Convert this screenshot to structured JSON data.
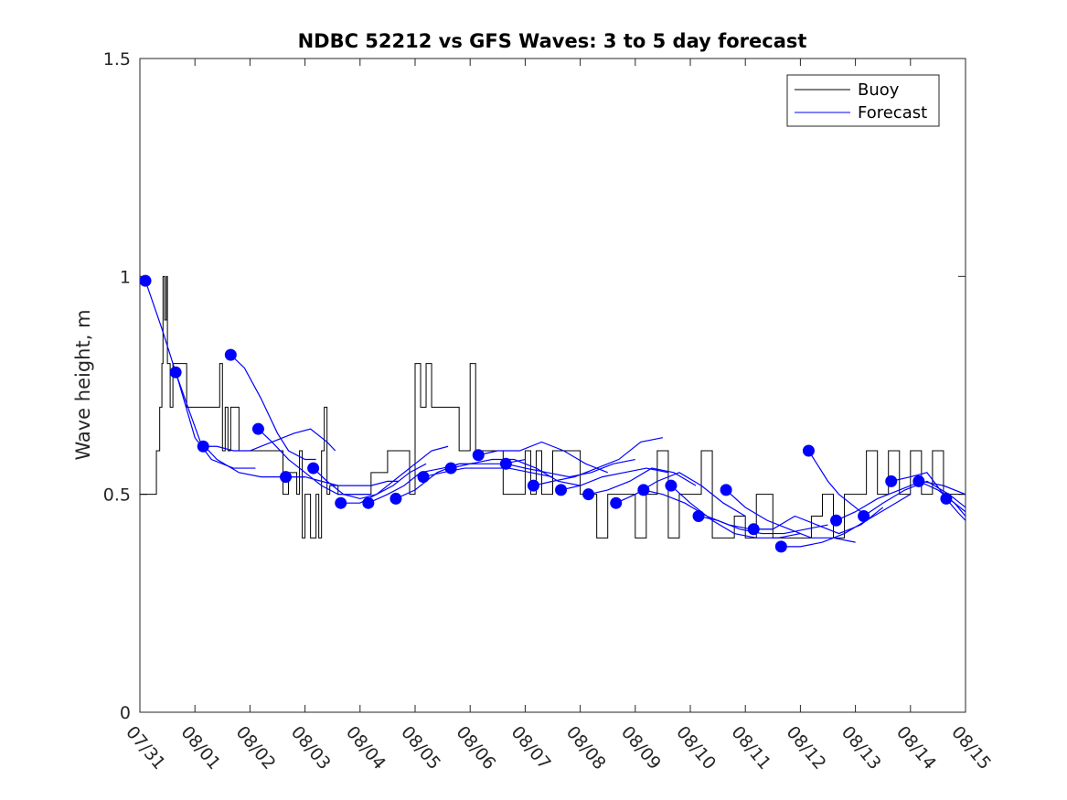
{
  "chart_data": {
    "type": "line",
    "title": "NDBC 52212 vs GFS Waves: 3 to 5 day forecast",
    "xlabel": "",
    "ylabel": "Wave height, m",
    "xlim": [
      0,
      15
    ],
    "ylim": [
      0,
      1.5
    ],
    "x_ticks": [
      0,
      1,
      2,
      3,
      4,
      5,
      6,
      7,
      8,
      9,
      10,
      11,
      12,
      13,
      14,
      15
    ],
    "x_tick_labels": [
      "07/31",
      "08/01",
      "08/02",
      "08/03",
      "08/04",
      "08/05",
      "08/06",
      "08/07",
      "08/08",
      "08/09",
      "08/10",
      "08/11",
      "08/12",
      "08/13",
      "08/14",
      "08/15"
    ],
    "y_ticks": [
      0,
      0.5,
      1,
      1.5
    ],
    "y_tick_labels": [
      "0",
      "0.5",
      "1",
      "1.5"
    ],
    "legend": {
      "position": "top-right",
      "entries": [
        "Buoy",
        "Forecast"
      ]
    },
    "colors": {
      "buoy": "#000000",
      "forecast": "#0000ff"
    },
    "series": [
      {
        "name": "Buoy",
        "x": [
          0,
          0.25,
          0.3,
          0.36,
          0.4,
          0.42,
          0.45,
          0.48,
          0.5,
          0.55,
          0.6,
          0.7,
          0.85,
          0.95,
          1.0,
          1.3,
          1.45,
          1.5,
          1.55,
          1.6,
          1.65,
          1.8,
          2.2,
          2.5,
          2.6,
          2.7,
          2.85,
          2.9,
          2.95,
          3.0,
          3.1,
          3.2,
          3.25,
          3.3,
          3.35,
          3.4,
          3.45,
          3.6,
          4.0,
          4.2,
          4.5,
          4.8,
          4.9,
          5.0,
          5.1,
          5.2,
          5.3,
          5.6,
          5.8,
          6.0,
          6.1,
          6.2,
          6.4,
          6.5,
          6.6,
          6.8,
          7.0,
          7.1,
          7.2,
          7.3,
          7.5,
          8.0,
          8.3,
          8.5,
          8.8,
          9.0,
          9.2,
          9.4,
          9.6,
          9.8,
          10.0,
          10.2,
          10.4,
          10.6,
          10.8,
          11.0,
          11.2,
          11.5,
          11.8,
          12.0,
          12.2,
          12.4,
          12.6,
          12.8,
          13.0,
          13.2,
          13.4,
          13.6,
          13.8,
          14.0,
          14.2,
          14.4,
          14.6,
          14.8,
          15.0
        ],
        "y": [
          0.5,
          0.5,
          0.6,
          0.7,
          0.8,
          1.0,
          0.9,
          1.0,
          0.8,
          0.7,
          0.8,
          0.8,
          0.7,
          0.7,
          0.7,
          0.7,
          0.8,
          0.6,
          0.7,
          0.6,
          0.7,
          0.6,
          0.6,
          0.6,
          0.5,
          0.55,
          0.5,
          0.6,
          0.4,
          0.5,
          0.4,
          0.5,
          0.4,
          0.6,
          0.7,
          0.5,
          0.52,
          0.5,
          0.5,
          0.55,
          0.6,
          0.6,
          0.5,
          0.8,
          0.7,
          0.8,
          0.7,
          0.7,
          0.6,
          0.8,
          0.6,
          0.6,
          0.6,
          0.6,
          0.5,
          0.5,
          0.6,
          0.5,
          0.6,
          0.5,
          0.6,
          0.5,
          0.4,
          0.5,
          0.5,
          0.4,
          0.5,
          0.6,
          0.4,
          0.5,
          0.5,
          0.6,
          0.4,
          0.4,
          0.45,
          0.4,
          0.5,
          0.4,
          0.4,
          0.4,
          0.45,
          0.5,
          0.4,
          0.5,
          0.5,
          0.6,
          0.5,
          0.6,
          0.5,
          0.6,
          0.5,
          0.6,
          0.5,
          0.5,
          0.5
        ]
      },
      {
        "name": "Forecast",
        "segments": [
          {
            "x": [
              0.1,
              0.4,
              0.7,
              1.0,
              1.3,
              1.7,
              2.1
            ],
            "y": [
              0.99,
              0.88,
              0.76,
              0.63,
              0.58,
              0.56,
              0.56
            ]
          },
          {
            "x": [
              0.65,
              0.9,
              1.1,
              1.4,
              1.8,
              2.2,
              2.6,
              3.0
            ],
            "y": [
              0.78,
              0.69,
              0.62,
              0.58,
              0.55,
              0.54,
              0.54,
              0.54
            ]
          },
          {
            "x": [
              1.15,
              1.4,
              1.7,
              2.0,
              2.4,
              2.8,
              3.1,
              3.4,
              3.55
            ],
            "y": [
              0.61,
              0.61,
              0.6,
              0.6,
              0.62,
              0.64,
              0.65,
              0.62,
              0.6
            ]
          },
          {
            "x": [
              1.65,
              1.9,
              2.2,
              2.5,
              2.7,
              3.0,
              3.2
            ],
            "y": [
              0.82,
              0.79,
              0.72,
              0.64,
              0.6,
              0.58,
              0.58
            ]
          },
          {
            "x": [
              2.15,
              2.4,
              2.7,
              3.0,
              3.3,
              3.6,
              4.0,
              4.2
            ],
            "y": [
              0.65,
              0.62,
              0.58,
              0.55,
              0.52,
              0.5,
              0.5,
              0.5
            ]
          },
          {
            "x": [
              2.65,
              3.0,
              3.3,
              3.6,
              3.9,
              4.2,
              4.5,
              4.7
            ],
            "y": [
              0.54,
              0.54,
              0.53,
              0.52,
              0.52,
              0.52,
              0.53,
              0.53
            ]
          },
          {
            "x": [
              3.15,
              3.4,
              3.7,
              4.0,
              4.3,
              4.6,
              4.9,
              5.2
            ],
            "y": [
              0.56,
              0.53,
              0.5,
              0.49,
              0.5,
              0.52,
              0.55,
              0.57
            ]
          },
          {
            "x": [
              3.65,
              4.0,
              4.3,
              4.6,
              5.0,
              5.3,
              5.6
            ],
            "y": [
              0.48,
              0.48,
              0.5,
              0.53,
              0.57,
              0.6,
              0.61
            ]
          },
          {
            "x": [
              4.15,
              4.5,
              4.8,
              5.1,
              5.5,
              5.8,
              6.1
            ],
            "y": [
              0.48,
              0.5,
              0.52,
              0.55,
              0.56,
              0.57,
              0.57
            ]
          },
          {
            "x": [
              4.65,
              5.0,
              5.4,
              5.8,
              6.2,
              6.6,
              7.0
            ],
            "y": [
              0.49,
              0.51,
              0.55,
              0.57,
              0.57,
              0.57,
              0.58
            ]
          },
          {
            "x": [
              5.15,
              5.5,
              5.9,
              6.3,
              6.7,
              7.1,
              7.5
            ],
            "y": [
              0.54,
              0.55,
              0.56,
              0.56,
              0.56,
              0.55,
              0.54
            ]
          },
          {
            "x": [
              5.65,
              6.0,
              6.4,
              6.8,
              7.2,
              7.6,
              8.0
            ],
            "y": [
              0.56,
              0.57,
              0.58,
              0.58,
              0.56,
              0.53,
              0.52
            ]
          },
          {
            "x": [
              6.15,
              6.5,
              6.9,
              7.3,
              7.7,
              8.1,
              8.5
            ],
            "y": [
              0.59,
              0.6,
              0.6,
              0.62,
              0.6,
              0.57,
              0.55
            ]
          },
          {
            "x": [
              6.65,
              7.0,
              7.4,
              7.8,
              8.2,
              8.6,
              9.0
            ],
            "y": [
              0.57,
              0.56,
              0.55,
              0.54,
              0.55,
              0.57,
              0.58
            ]
          },
          {
            "x": [
              7.15,
              7.5,
              7.9,
              8.3,
              8.7,
              9.1,
              9.5
            ],
            "y": [
              0.52,
              0.53,
              0.54,
              0.56,
              0.58,
              0.62,
              0.63
            ]
          },
          {
            "x": [
              7.65,
              8.0,
              8.4,
              8.8,
              9.2,
              9.6
            ],
            "y": [
              0.51,
              0.52,
              0.54,
              0.55,
              0.56,
              0.55
            ]
          },
          {
            "x": [
              8.15,
              8.5,
              8.9,
              9.3,
              9.7,
              10.1
            ],
            "y": [
              0.5,
              0.51,
              0.53,
              0.56,
              0.55,
              0.52
            ]
          },
          {
            "x": [
              8.65,
              9.0,
              9.4,
              9.8,
              10.2,
              10.6,
              11.0
            ],
            "y": [
              0.48,
              0.5,
              0.53,
              0.55,
              0.52,
              0.48,
              0.45
            ]
          },
          {
            "x": [
              9.15,
              9.5,
              9.9,
              10.3,
              10.7,
              11.1,
              11.5
            ],
            "y": [
              0.51,
              0.5,
              0.48,
              0.45,
              0.43,
              0.42,
              0.42
            ]
          },
          {
            "x": [
              9.65,
              10.0,
              10.4,
              10.8,
              11.2,
              11.6,
              12.0
            ],
            "y": [
              0.52,
              0.48,
              0.44,
              0.41,
              0.4,
              0.4,
              0.41
            ]
          },
          {
            "x": [
              10.15,
              10.5,
              10.9,
              11.3,
              11.7,
              12.1,
              12.5
            ],
            "y": [
              0.45,
              0.44,
              0.42,
              0.41,
              0.41,
              0.42,
              0.43
            ]
          },
          {
            "x": [
              10.65,
              11.0,
              11.4,
              11.8,
              12.2,
              12.6,
              13.0
            ],
            "y": [
              0.51,
              0.47,
              0.44,
              0.42,
              0.4,
              0.4,
              0.39
            ]
          },
          {
            "x": [
              11.15,
              11.5,
              11.9,
              12.3,
              12.7,
              13.1,
              13.5
            ],
            "y": [
              0.42,
              0.42,
              0.45,
              0.43,
              0.41,
              0.43,
              0.47
            ]
          },
          {
            "x": [
              11.65,
              12.0,
              12.4,
              12.8,
              13.2,
              13.6,
              14.0
            ],
            "y": [
              0.38,
              0.38,
              0.39,
              0.41,
              0.44,
              0.47,
              0.5
            ]
          },
          {
            "x": [
              12.15,
              12.3,
              12.5,
              12.7,
              12.9,
              13.1
            ],
            "y": [
              0.6,
              0.57,
              0.53,
              0.5,
              0.48,
              0.46
            ]
          },
          {
            "x": [
              12.65,
              13.0,
              13.4,
              13.8,
              14.2,
              14.6,
              15.0
            ],
            "y": [
              0.44,
              0.46,
              0.49,
              0.51,
              0.53,
              0.52,
              0.5
            ]
          },
          {
            "x": [
              13.15,
              13.5,
              13.9,
              14.3,
              14.7,
              15.0
            ],
            "y": [
              0.45,
              0.48,
              0.51,
              0.53,
              0.5,
              0.47
            ]
          },
          {
            "x": [
              13.65,
              14.0,
              14.3,
              14.6,
              15.0
            ],
            "y": [
              0.53,
              0.54,
              0.55,
              0.5,
              0.46
            ]
          },
          {
            "x": [
              14.15,
              14.5,
              14.8,
              15.0
            ],
            "y": [
              0.53,
              0.51,
              0.48,
              0.45
            ]
          },
          {
            "x": [
              14.65,
              14.85,
              15.0
            ],
            "y": [
              0.49,
              0.46,
              0.44
            ]
          }
        ],
        "markers": {
          "x": [
            0.1,
            0.65,
            1.15,
            1.65,
            2.15,
            2.65,
            3.15,
            3.65,
            4.15,
            4.65,
            5.15,
            5.65,
            6.15,
            6.65,
            7.15,
            7.65,
            8.15,
            8.65,
            9.15,
            9.65,
            10.15,
            10.65,
            11.15,
            11.65,
            12.15,
            12.65,
            13.15,
            13.65,
            14.15,
            14.65
          ],
          "y": [
            0.99,
            0.78,
            0.61,
            0.82,
            0.65,
            0.54,
            0.56,
            0.48,
            0.48,
            0.49,
            0.54,
            0.56,
            0.59,
            0.57,
            0.52,
            0.51,
            0.5,
            0.48,
            0.51,
            0.52,
            0.45,
            0.51,
            0.42,
            0.38,
            0.6,
            0.44,
            0.45,
            0.53,
            0.53,
            0.49
          ]
        }
      }
    ]
  }
}
